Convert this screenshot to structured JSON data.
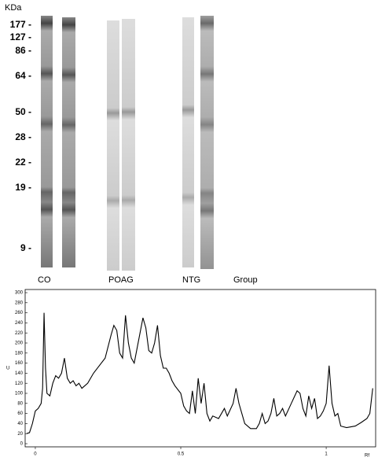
{
  "blot": {
    "unit_label": "KDa",
    "markers": [
      "177 -",
      "127 -",
      "86 -",
      "64 -",
      "50 -",
      "28 -",
      "22 -",
      "19 -",
      "9 -"
    ],
    "lanes": [
      "CO",
      "POAG",
      "NTG"
    ],
    "group_label": "Group"
  },
  "chart_data": {
    "type": "line",
    "ylabel": "U",
    "xlabel": "Rf",
    "color": "#000000",
    "x": [
      -0.03,
      -0.02,
      -0.01,
      0.0,
      0.01,
      0.02,
      0.025,
      0.03,
      0.035,
      0.04,
      0.05,
      0.06,
      0.07,
      0.08,
      0.09,
      0.1,
      0.11,
      0.12,
      0.13,
      0.14,
      0.15,
      0.16,
      0.18,
      0.2,
      0.22,
      0.24,
      0.26,
      0.27,
      0.28,
      0.29,
      0.3,
      0.31,
      0.32,
      0.33,
      0.34,
      0.35,
      0.37,
      0.38,
      0.39,
      0.4,
      0.41,
      0.42,
      0.43,
      0.44,
      0.45,
      0.46,
      0.47,
      0.48,
      0.5,
      0.51,
      0.52,
      0.53,
      0.54,
      0.55,
      0.56,
      0.57,
      0.58,
      0.59,
      0.6,
      0.61,
      0.63,
      0.65,
      0.66,
      0.68,
      0.69,
      0.7,
      0.72,
      0.74,
      0.76,
      0.77,
      0.78,
      0.79,
      0.8,
      0.81,
      0.82,
      0.83,
      0.84,
      0.85,
      0.86,
      0.88,
      0.9,
      0.91,
      0.92,
      0.93,
      0.94,
      0.95,
      0.96,
      0.97,
      0.98,
      0.99,
      1.0,
      1.01,
      1.02,
      1.03,
      1.04,
      1.05,
      1.07,
      1.1,
      1.12,
      1.14,
      1.15,
      1.16
    ],
    "values": [
      20,
      22,
      40,
      65,
      70,
      80,
      110,
      260,
      150,
      100,
      95,
      120,
      135,
      130,
      140,
      170,
      130,
      120,
      125,
      115,
      120,
      110,
      120,
      140,
      155,
      170,
      215,
      235,
      225,
      180,
      170,
      255,
      200,
      170,
      160,
      190,
      250,
      230,
      185,
      180,
      200,
      235,
      175,
      150,
      150,
      140,
      125,
      115,
      100,
      75,
      65,
      60,
      105,
      60,
      130,
      80,
      120,
      60,
      45,
      55,
      50,
      70,
      55,
      80,
      110,
      80,
      40,
      30,
      30,
      40,
      60,
      40,
      45,
      60,
      90,
      55,
      60,
      70,
      55,
      80,
      105,
      100,
      70,
      55,
      95,
      70,
      90,
      50,
      55,
      65,
      80,
      155,
      80,
      55,
      60,
      35,
      32,
      35,
      42,
      50,
      60,
      110
    ],
    "xlim": [
      -0.035,
      1.17
    ],
    "ylim": [
      0,
      300
    ],
    "xticks": [
      0,
      0.5,
      1
    ],
    "yticks": [
      0,
      20,
      40,
      60,
      80,
      100,
      120,
      140,
      160,
      180,
      200,
      220,
      240,
      260,
      280,
      300
    ]
  }
}
